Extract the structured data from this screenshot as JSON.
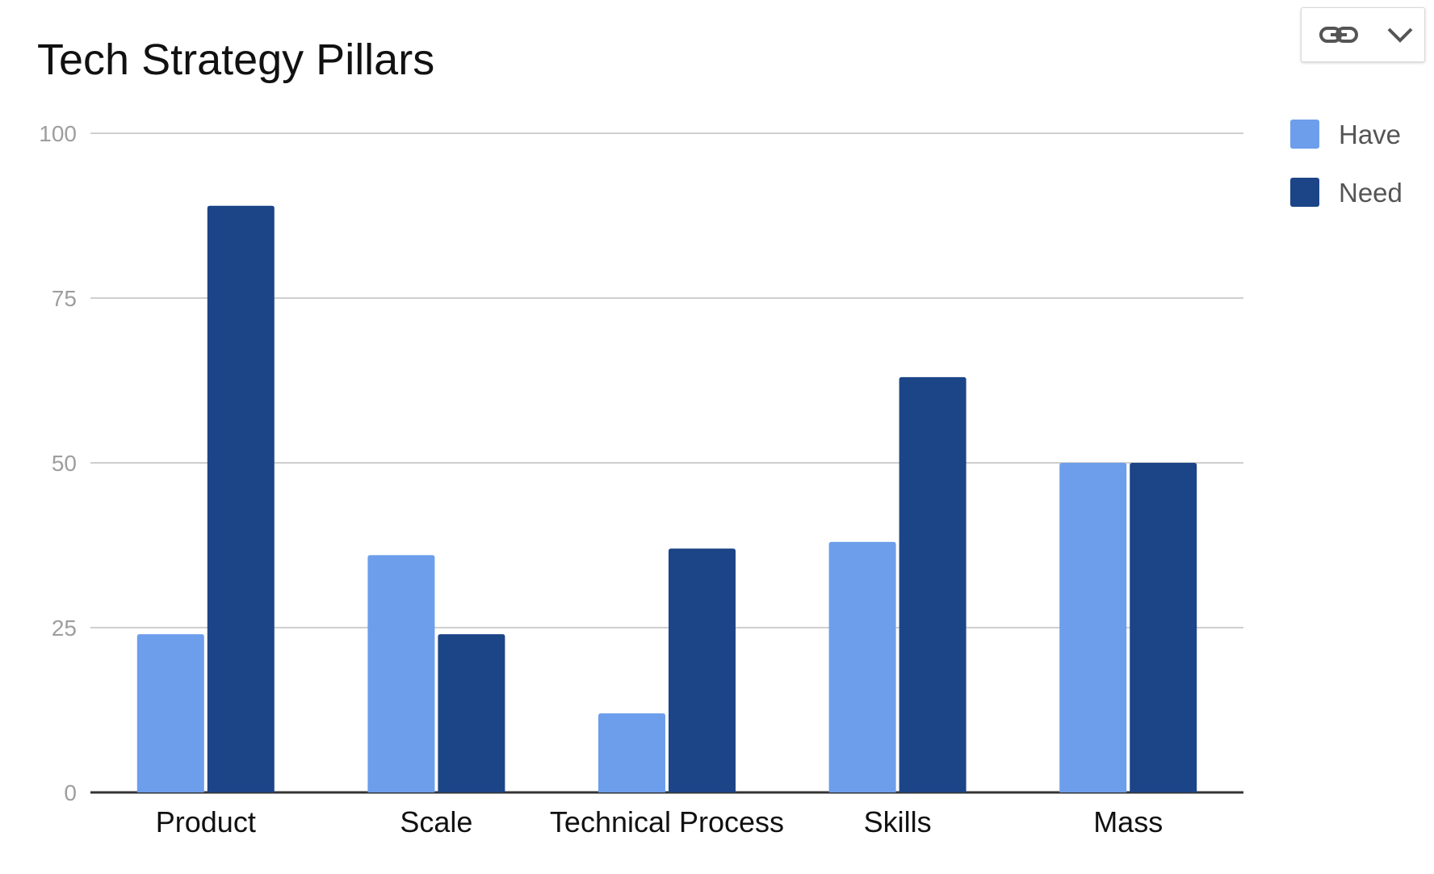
{
  "toolbar": {
    "link_icon": "link-icon",
    "menu_icon": "chevron-down-icon"
  },
  "colors": {
    "have": "#6d9eeb",
    "need": "#1c4587"
  },
  "chart_data": {
    "type": "bar",
    "title": "Tech Strategy Pillars",
    "xlabel": "",
    "ylabel": "",
    "categories": [
      "Product",
      "Scale",
      "Technical Process",
      "Skills",
      "Mass"
    ],
    "series": [
      {
        "name": "Have",
        "values": [
          24,
          36,
          12,
          38,
          50
        ]
      },
      {
        "name": "Need",
        "values": [
          89,
          24,
          37,
          63,
          50
        ]
      }
    ],
    "ylim": [
      0,
      100
    ],
    "yticks": [
      "0",
      "25",
      "50",
      "75",
      "100"
    ],
    "grid": true,
    "legend_position": "right"
  }
}
